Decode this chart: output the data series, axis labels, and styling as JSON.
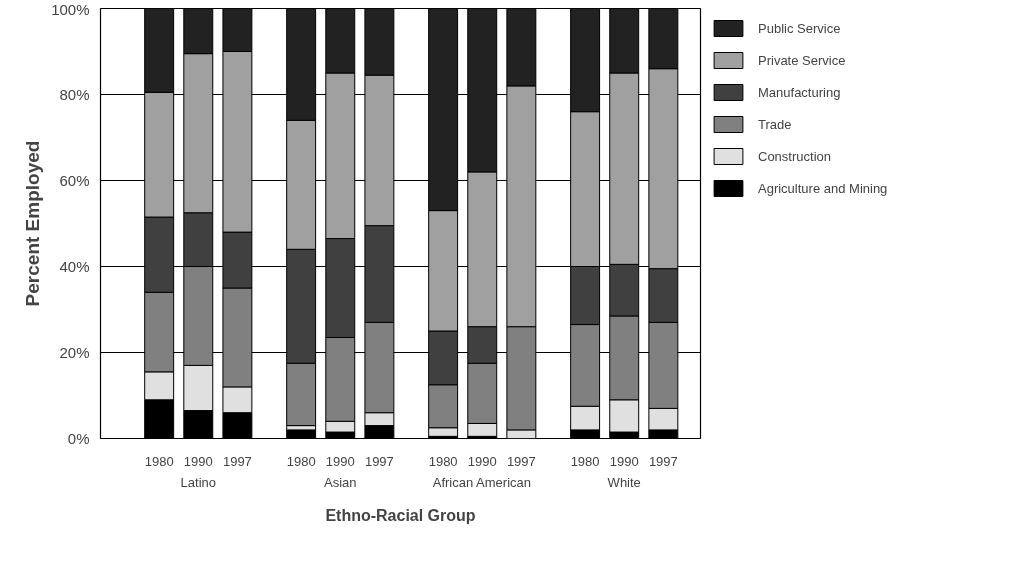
{
  "chart_data": {
    "type": "bar",
    "stacked": true,
    "xlabel": "Ethno-Racial Group",
    "ylabel": "Percent Employed",
    "categories": [
      "1980",
      "1990",
      "1997",
      "1980",
      "1990",
      "1997",
      "1980",
      "1990",
      "1997",
      "1980",
      "1990",
      "1997"
    ],
    "annotations": [
      "Latino",
      "Asian",
      "African American",
      "White"
    ],
    "series": [
      {
        "name": "Agriculture and Mining",
        "color": "#000000",
        "values": [
          9,
          6.5,
          6,
          2,
          1.5,
          3,
          0.5,
          0.5,
          null,
          2,
          1.5,
          2
        ]
      },
      {
        "name": "Construction",
        "color": "#e0e0e0",
        "values": [
          6.5,
          10.5,
          6,
          1,
          2.5,
          3,
          2,
          3,
          2,
          5.5,
          7.5,
          5
        ]
      },
      {
        "name": "Trade",
        "color": "#808080",
        "values": [
          18.5,
          23,
          23,
          14.5,
          19.5,
          21,
          10,
          14,
          24,
          19,
          19.5,
          20
        ]
      },
      {
        "name": "Manufacturing",
        "color": "#404040",
        "values": [
          17.5,
          12.5,
          13,
          26.5,
          23,
          22.5,
          12.5,
          8.5,
          null,
          13.5,
          12,
          12.5
        ]
      },
      {
        "name": "Private Service",
        "color": "#a0a0a0",
        "values": [
          29,
          37,
          42,
          30,
          38.5,
          35,
          28,
          36,
          56,
          36,
          44.5,
          46.5
        ]
      },
      {
        "name": "Public Service",
        "color": "#222222",
        "values": [
          19.5,
          10.5,
          10,
          26,
          15,
          15.5,
          47,
          38,
          18,
          24,
          15,
          14
        ]
      }
    ],
    "ylim": [
      0,
      100
    ],
    "yticks": [
      {
        "value": 0,
        "label": "0%"
      },
      {
        "value": 20,
        "label": "20%"
      },
      {
        "value": 40,
        "label": "40%"
      },
      {
        "value": 60,
        "label": "60%"
      },
      {
        "value": 80,
        "label": "80%"
      },
      {
        "value": 100,
        "label": "100%"
      }
    ],
    "grid": "y",
    "legend": "right"
  }
}
